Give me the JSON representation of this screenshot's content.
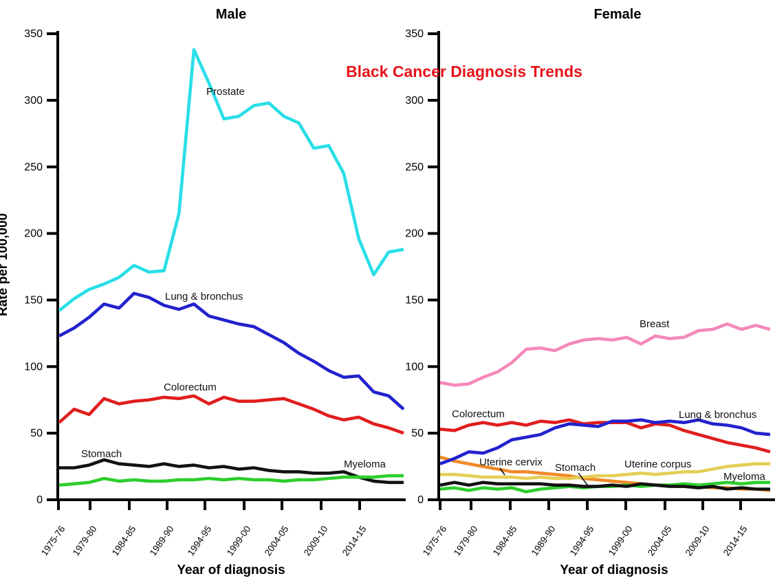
{
  "chart_data": {
    "type": "line",
    "title": "Black Cancer Diagnosis Trends",
    "title_color": "#e8131a",
    "x_axis": {
      "label": "Year of diagnosis",
      "tick_labels": [
        "1975-76",
        "1979-80",
        "1984-85",
        "1989-90",
        "1994-95",
        "1999-00",
        "2004-05",
        "2009-10",
        "2014-15"
      ]
    },
    "y_axis": {
      "label": "Rate per 100,000",
      "range": [
        0,
        350
      ],
      "ticks": [
        0,
        50,
        100,
        150,
        200,
        250,
        300,
        350
      ]
    },
    "panels": [
      {
        "title": "Male",
        "series": [
          {
            "name": "Prostate",
            "color": "#29dee7",
            "values": [
              142,
              151,
              158,
              162,
              167,
              176,
              171,
              172,
              215,
              338,
              313,
              286,
              288,
              296,
              298,
              288,
              283,
              264,
              266,
              245,
              196,
              169,
              186,
              188
            ]
          },
          {
            "name": "Lung & bronchus",
            "color": "#2222ce",
            "values": [
              123,
              129,
              137,
              147,
              144,
              155,
              152,
              146,
              143,
              147,
              138,
              135,
              132,
              130,
              124,
              118,
              110,
              104,
              97,
              92,
              93,
              81,
              78,
              68
            ]
          },
          {
            "name": "Colorectum",
            "color": "#e01e1e",
            "values": [
              58,
              68,
              64,
              76,
              72,
              74,
              75,
              77,
              76,
              78,
              72,
              77,
              74,
              74,
              75,
              76,
              72,
              68,
              63,
              60,
              62,
              57,
              54,
              50
            ]
          },
          {
            "name": "Stomach",
            "color": "#121212",
            "values": [
              24,
              24,
              26,
              30,
              27,
              26,
              25,
              27,
              25,
              26,
              24,
              25,
              23,
              24,
              22,
              21,
              21,
              20,
              20,
              21,
              17,
              14,
              13,
              13
            ]
          },
          {
            "name": "Myeloma",
            "color": "#2cce2c",
            "values": [
              11,
              12,
              13,
              16,
              14,
              15,
              14,
              14,
              15,
              15,
              16,
              15,
              16,
              15,
              15,
              14,
              15,
              15,
              16,
              17,
              17,
              17,
              18,
              18
            ]
          }
        ]
      },
      {
        "title": "Female",
        "series": [
          {
            "name": "Uterine cervix",
            "color": "#f08a28",
            "values": [
              32,
              29,
              27,
              25,
              23,
              21,
              21,
              20,
              19,
              18,
              16,
              15,
              14,
              13,
              12,
              11,
              11,
              10,
              10,
              9,
              9,
              8,
              8,
              7
            ]
          },
          {
            "name": "Uterine corpus",
            "color": "#e5ce55",
            "values": [
              19,
              19,
              18,
              17,
              17,
              17,
              16,
              17,
              16,
              16,
              17,
              18,
              18,
              19,
              20,
              19,
              20,
              21,
              21,
              23,
              25,
              26,
              27,
              27
            ]
          },
          {
            "name": "Myeloma",
            "color": "#2cce2c",
            "values": [
              8,
              9,
              7,
              9,
              8,
              9,
              6,
              8,
              9,
              10,
              9,
              10,
              10,
              11,
              10,
              11,
              11,
              12,
              11,
              12,
              13,
              12,
              13,
              13
            ]
          },
          {
            "name": "Stomach",
            "color": "#121212",
            "values": [
              11,
              13,
              11,
              13,
              12,
              12,
              12,
              12,
              11,
              11,
              10,
              10,
              11,
              10,
              12,
              11,
              10,
              10,
              9,
              10,
              8,
              9,
              8,
              8
            ]
          },
          {
            "name": "Colorectum",
            "color": "#e01e1e",
            "values": [
              53,
              52,
              56,
              58,
              56,
              58,
              56,
              59,
              58,
              60,
              57,
              58,
              58,
              58,
              54,
              57,
              56,
              52,
              49,
              46,
              43,
              41,
              39,
              36
            ]
          },
          {
            "name": "Lung & bronchus",
            "color": "#2222ce",
            "values": [
              27,
              31,
              36,
              35,
              39,
              45,
              47,
              49,
              54,
              57,
              56,
              55,
              59,
              59,
              60,
              58,
              59,
              58,
              60,
              57,
              56,
              54,
              50,
              49
            ]
          },
          {
            "name": "Breast",
            "color": "#f489ba",
            "values": [
              88,
              86,
              87,
              92,
              96,
              103,
              113,
              114,
              112,
              117,
              120,
              121,
              120,
              122,
              117,
              123,
              121,
              122,
              127,
              128,
              132,
              128,
              131,
              128
            ]
          }
        ]
      }
    ]
  }
}
